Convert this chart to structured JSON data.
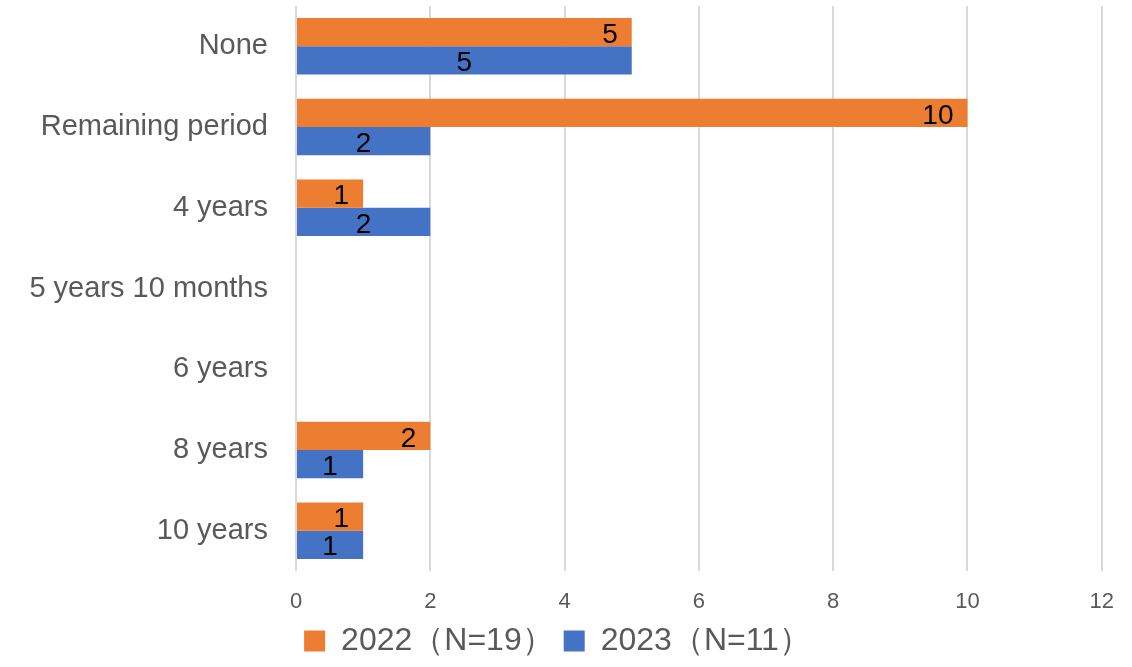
{
  "chart_data": {
    "type": "bar",
    "orientation": "horizontal",
    "categories": [
      "None",
      "Remaining period",
      "4 years",
      "5 years 10 months",
      "6 years",
      "8 years",
      "10 years"
    ],
    "series": [
      {
        "name": "2022（N=19）",
        "color": "#ed7d31",
        "values": [
          5,
          10,
          1,
          null,
          null,
          2,
          1
        ]
      },
      {
        "name": "2023（N=11）",
        "color": "#4472c4",
        "values": [
          5,
          2,
          2,
          null,
          null,
          1,
          1
        ]
      }
    ],
    "xlim": [
      0,
      12
    ],
    "xticks": [
      0,
      2,
      4,
      6,
      8,
      10,
      12
    ],
    "grid": "x",
    "legend": "bottom",
    "data_labels": true
  }
}
